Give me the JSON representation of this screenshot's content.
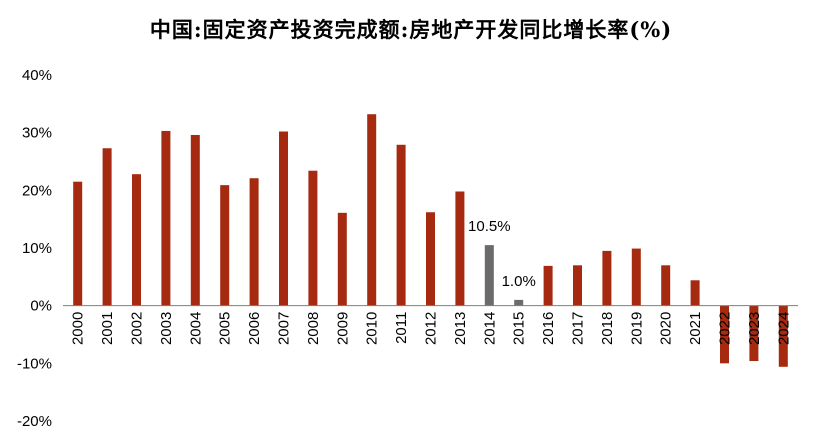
{
  "chart_data": {
    "type": "bar",
    "title": "中国:固定资产投资完成额:房地产开发同比增长率(%)",
    "xlabel": "",
    "ylabel": "",
    "ylim": [
      -20,
      40
    ],
    "yticks": [
      "40%",
      "30%",
      "20%",
      "10%",
      "0%",
      "-10%",
      "-20%"
    ],
    "ytick_values": [
      40,
      30,
      20,
      10,
      0,
      -10,
      -20
    ],
    "grid": false,
    "legend": "none",
    "categories": [
      "2000",
      "2001",
      "2002",
      "2003",
      "2004",
      "2005",
      "2006",
      "2007",
      "2008",
      "2009",
      "2010",
      "2011",
      "2012",
      "2013",
      "2014",
      "2015",
      "2016",
      "2017",
      "2018",
      "2019",
      "2020",
      "2021",
      "2022",
      "2023",
      "2024"
    ],
    "values": [
      21.5,
      27.3,
      22.8,
      30.3,
      29.6,
      20.9,
      22.1,
      30.2,
      23.4,
      16.1,
      33.2,
      27.9,
      16.2,
      19.8,
      10.5,
      1.0,
      6.9,
      7.0,
      9.5,
      9.9,
      7.0,
      4.4,
      -10.0,
      -9.6,
      -10.6
    ],
    "highlight_indices": [
      14,
      15
    ],
    "data_labels": {
      "14": "10.5%",
      "15": "1.0%"
    },
    "colors": {
      "bar": "#a52a0f",
      "highlight": "#6b6b6b",
      "axis": "#7f7f7f"
    }
  }
}
